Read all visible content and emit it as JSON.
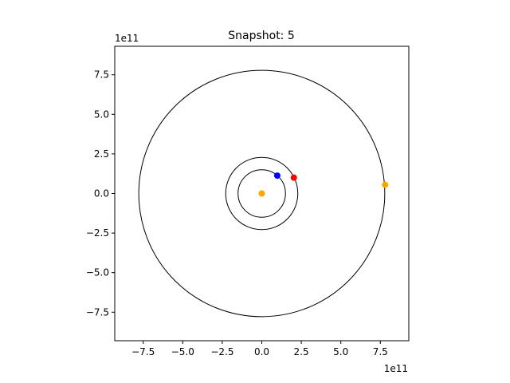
{
  "chart_data": {
    "type": "scatter",
    "title": "Snapshot: 5",
    "xlabel": "",
    "ylabel": "",
    "x_offset_label": "1e11",
    "y_offset_label": "1e11",
    "xlim": [
      -9.3,
      9.3
    ],
    "ylim": [
      -9.3,
      9.3
    ],
    "x_ticks": [
      -7.5,
      -5.0,
      -2.5,
      0.0,
      2.5,
      5.0,
      7.5
    ],
    "x_tick_labels": [
      "−7.5",
      "−5.0",
      "−2.5",
      "0.0",
      "2.5",
      "5.0",
      "7.5"
    ],
    "y_ticks": [
      -7.5,
      -5.0,
      -2.5,
      0.0,
      2.5,
      5.0,
      7.5
    ],
    "y_tick_labels": [
      "−7.5",
      "−5.0",
      "−2.5",
      "0.0",
      "2.5",
      "5.0",
      "7.5"
    ],
    "grid": false,
    "orbits": [
      {
        "radius": 1.5,
        "color": "#000000"
      },
      {
        "radius": 2.28,
        "color": "#000000"
      },
      {
        "radius": 7.78,
        "color": "#000000"
      }
    ],
    "points": [
      {
        "x": 0.0,
        "y": 0.0,
        "color": "#ffa500"
      },
      {
        "x": 0.98,
        "y": 1.13,
        "color": "#0000ff"
      },
      {
        "x": 2.03,
        "y": 1.0,
        "color": "#ff0000"
      },
      {
        "x": 7.8,
        "y": 0.55,
        "color": "#ffa500"
      }
    ]
  }
}
